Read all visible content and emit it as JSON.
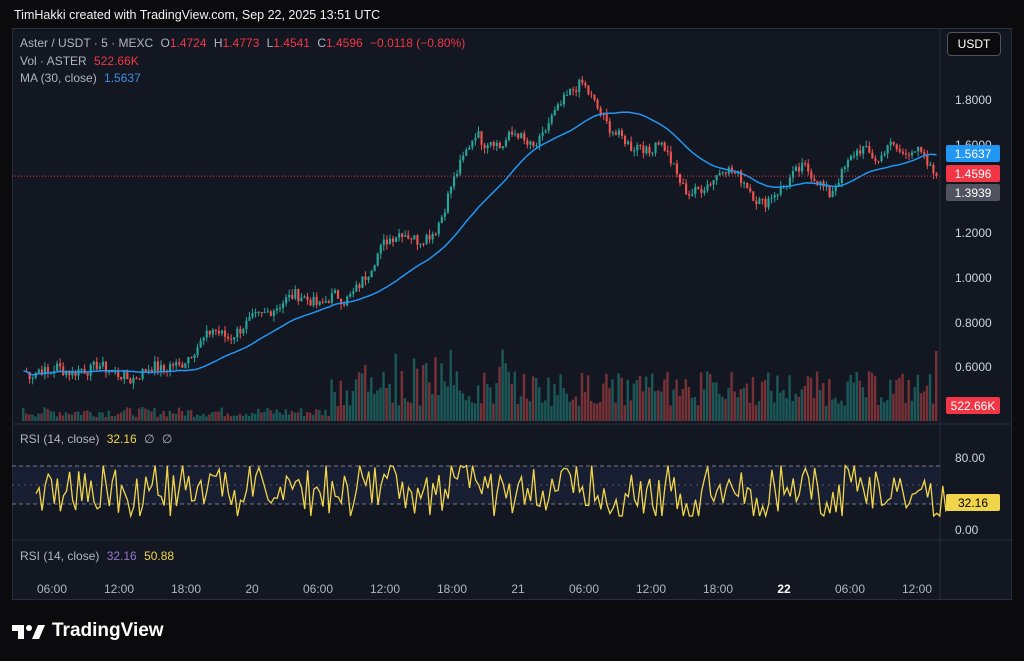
{
  "credit": "TimHakki created with TradingView.com, Sep 22, 2025 13:51 UTC",
  "legend": {
    "symbol": "Aster / USDT · 5 · MEXC",
    "o_label": "O",
    "o_value": "1.4724",
    "h_label": "H",
    "h_value": "1.4773",
    "l_label": "L",
    "l_value": "1.4541",
    "c_label": "C",
    "c_value": "1.4596",
    "change": "−0.0118 (−0.80%)",
    "vol_label": "Vol · ASTER",
    "vol_value": "522.66K",
    "ma_label": "MA (30, close)",
    "ma_value": "1.5637"
  },
  "rsi1": {
    "label": "RSI (14, close)",
    "value": "32.16",
    "extra1": "∅",
    "extra2": "∅"
  },
  "rsi2": {
    "label": "RSI (14, close)",
    "value1": "32.16",
    "value2": "50.88"
  },
  "currency_button": "USDT",
  "price_axis": [
    "1.8000",
    "1.6000",
    "1.2000",
    "1.0000",
    "0.8000",
    "0.6000"
  ],
  "rsi_axis": [
    "80.00",
    "0.00"
  ],
  "tags": {
    "ma": "1.5637",
    "close": "1.4596",
    "low": "1.3939",
    "volume": "522.66K",
    "rsi": "32.16"
  },
  "time_axis": [
    "06:00",
    "12:00",
    "18:00",
    "20",
    "06:00",
    "12:00",
    "18:00",
    "21",
    "06:00",
    "12:00",
    "18:00",
    "22",
    "06:00",
    "12:00"
  ],
  "brand": "TradingView",
  "colors": {
    "up": "#26a69a",
    "down": "#ef5350",
    "ma": "#2962ff",
    "rsi": "#f0d44a",
    "bg": "#131722"
  },
  "chart_data": {
    "type": "candlestick",
    "ylim": [
      0.4,
      1.96
    ],
    "price_series_approx": [
      0.62,
      0.6,
      0.63,
      0.61,
      0.64,
      0.62,
      0.61,
      0.63,
      0.62,
      0.65,
      0.63,
      0.61,
      0.6,
      0.58,
      0.6,
      0.63,
      0.64,
      0.62,
      0.65,
      0.64,
      0.68,
      0.72,
      0.76,
      0.8,
      0.78,
      0.76,
      0.79,
      0.82,
      0.85,
      0.86,
      0.88,
      0.9,
      0.93,
      0.95,
      0.94,
      0.92,
      0.9,
      0.93,
      0.95,
      0.92,
      0.95,
      1.0,
      1.05,
      1.12,
      1.18,
      1.2,
      1.22,
      1.2,
      1.18,
      1.2,
      1.22,
      1.3,
      1.42,
      1.5,
      1.58,
      1.65,
      1.6,
      1.62,
      1.58,
      1.63,
      1.65,
      1.6,
      1.58,
      1.62,
      1.7,
      1.75,
      1.8,
      1.84,
      1.86,
      1.8,
      1.74,
      1.68,
      1.64,
      1.62,
      1.58,
      1.6,
      1.55,
      1.62,
      1.58,
      1.5,
      1.42,
      1.38,
      1.4,
      1.42,
      1.45,
      1.5,
      1.48,
      1.46,
      1.42,
      1.36,
      1.34,
      1.38,
      1.4,
      1.44,
      1.48,
      1.5,
      1.46,
      1.42,
      1.38,
      1.44,
      1.5,
      1.56,
      1.58,
      1.55,
      1.52,
      1.6,
      1.58,
      1.55,
      1.58,
      1.56,
      1.5,
      1.46
    ],
    "ma_value": 1.5637,
    "last_close": 1.4596
  }
}
